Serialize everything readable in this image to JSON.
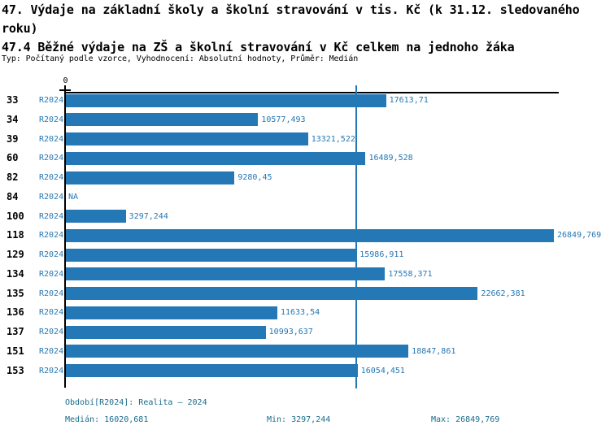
{
  "header": {
    "title_line1": "47. Výdaje na základní školy a školní stravování v tis. Kč (k 31.12. sledovaného",
    "title_line2": "roku)",
    "title_line3": "47.4 Běžné výdaje na ZŠ a školní stravování v Kč celkem na jednoho žáka",
    "meta": "Typ: Počítaný podle vzorce, Vyhodnocení: Absolutní hodnoty, Průměr: Medián"
  },
  "axis": {
    "zero_label": "0"
  },
  "colors": {
    "bar": "#2478b5",
    "median_line": "#2478b5",
    "value_text": "#2478b5",
    "period_text": "#2478b5",
    "footer_text": "#1a6b8c",
    "axis": "#000000"
  },
  "chart_data": {
    "type": "bar",
    "orientation": "horizontal",
    "title": "47.4 Běžné výdaje na ZŠ a školní stravování v Kč celkem na jednoho žáka",
    "xlabel": "",
    "ylabel": "",
    "xlim": [
      0,
      26849.769
    ],
    "grid": false,
    "legend_position": "none",
    "categories": [
      "33",
      "34",
      "39",
      "60",
      "82",
      "84",
      "100",
      "118",
      "129",
      "134",
      "135",
      "136",
      "137",
      "151",
      "153"
    ],
    "series": [
      {
        "name": "R2024",
        "values": [
          17613.71,
          10577.493,
          13321.522,
          16489.528,
          9280.45,
          null,
          3297.244,
          26849.769,
          15986.911,
          17558.371,
          22662.381,
          11633.54,
          10993.637,
          18847.861,
          16054.451
        ],
        "value_labels": [
          "17613,71",
          "10577,493",
          "13321,522",
          "16489,528",
          "9280,45",
          "NA",
          "3297,244",
          "26849,769",
          "15986,911",
          "17558,371",
          "22662,381",
          "11633,54",
          "10993,637",
          "18847,861",
          "16054,451"
        ]
      }
    ],
    "period_label": "R2024",
    "median": 16020.681,
    "min": 3297.244,
    "max": 26849.769,
    "annotations": [
      "median vertical line at 16020,681"
    ]
  },
  "footer": {
    "period_line": "Období[R2024]: Realita – 2024",
    "median_label": "Medián: 16020,681",
    "min_label": "Min: 3297,244",
    "max_label": "Max: 26849,769"
  }
}
